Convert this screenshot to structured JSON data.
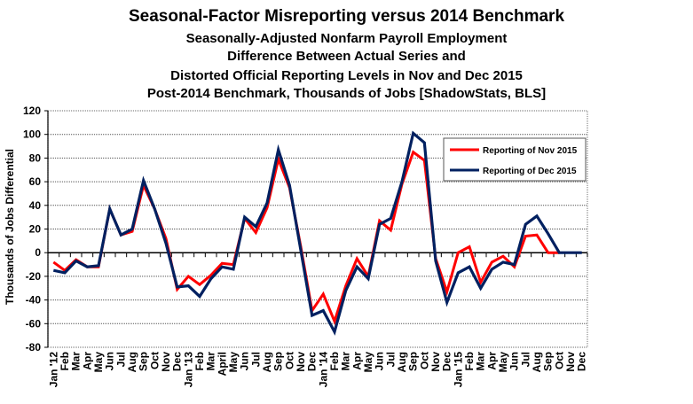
{
  "chart_data": {
    "type": "line",
    "title": "Seasonal-Factor Misreporting versus 2014 Benchmark",
    "subtitles": [
      "Seasonally-Adjusted Nonfarm Payroll Employment",
      "Difference Between Actual Series and",
      "Distorted Official Reporting Levels in Nov and Dec 2015",
      "Post-2014 Benchmark, Thousands of Jobs [ShadowStats, BLS]"
    ],
    "xlabel": "",
    "ylabel": "Thousands of Jobs Differential",
    "ylim": [
      -80,
      120
    ],
    "yticks": [
      120,
      100,
      80,
      60,
      40,
      20,
      0,
      -20,
      -40,
      -60,
      -80
    ],
    "grid": true,
    "legend_position": "top-right",
    "categories": [
      "Jan '12",
      "Feb",
      "Mar",
      "Apr",
      "May",
      "Jun",
      "Jul",
      "Aug",
      "Sep",
      "Oct",
      "Nov",
      "Dec",
      "Jan '13",
      "Feb",
      "Mar",
      "April",
      "May",
      "Jun",
      "Jul",
      "Aug",
      "Sep",
      "Oct",
      "Nov",
      "Dec",
      "Jan '14",
      "Feb",
      "Mar",
      "Apr",
      "May",
      "Jun",
      "Jul",
      "Aug",
      "Sep",
      "Oct",
      "Nov",
      "Dec",
      "Jan '15",
      "Feb",
      "Mar",
      "Apr",
      "May",
      "Jun",
      "Jul",
      "Aug",
      "Sep",
      "Oct",
      "Nov",
      "Dec"
    ],
    "series": [
      {
        "name": "Reporting of Nov 2015",
        "color": "#ff0000",
        "values": [
          -8,
          -15,
          -6,
          -12,
          -12,
          37,
          15,
          18,
          57,
          37,
          12,
          -31,
          -20,
          -27,
          -19,
          -9,
          -10,
          29,
          17,
          38,
          79,
          55,
          5,
          -49,
          -35,
          -58,
          -28,
          -5,
          -20,
          27,
          19,
          58,
          85,
          78,
          -5,
          -33,
          0,
          5,
          -25,
          -8,
          -3,
          -12,
          14,
          15,
          0,
          0,
          null,
          null
        ]
      },
      {
        "name": "Reporting of Dec 2015",
        "color": "#002060",
        "values": [
          -15,
          -17,
          -7,
          -12,
          -11,
          37,
          15,
          20,
          61,
          37,
          8,
          -29,
          -28,
          -37,
          -22,
          -12,
          -14,
          30,
          22,
          42,
          87,
          57,
          2,
          -53,
          -49,
          -67,
          -32,
          -12,
          -22,
          24,
          29,
          60,
          101,
          93,
          -7,
          -42,
          -17,
          -12,
          -30,
          -14,
          -8,
          -10,
          24,
          31,
          16,
          0,
          0,
          0
        ]
      }
    ]
  }
}
